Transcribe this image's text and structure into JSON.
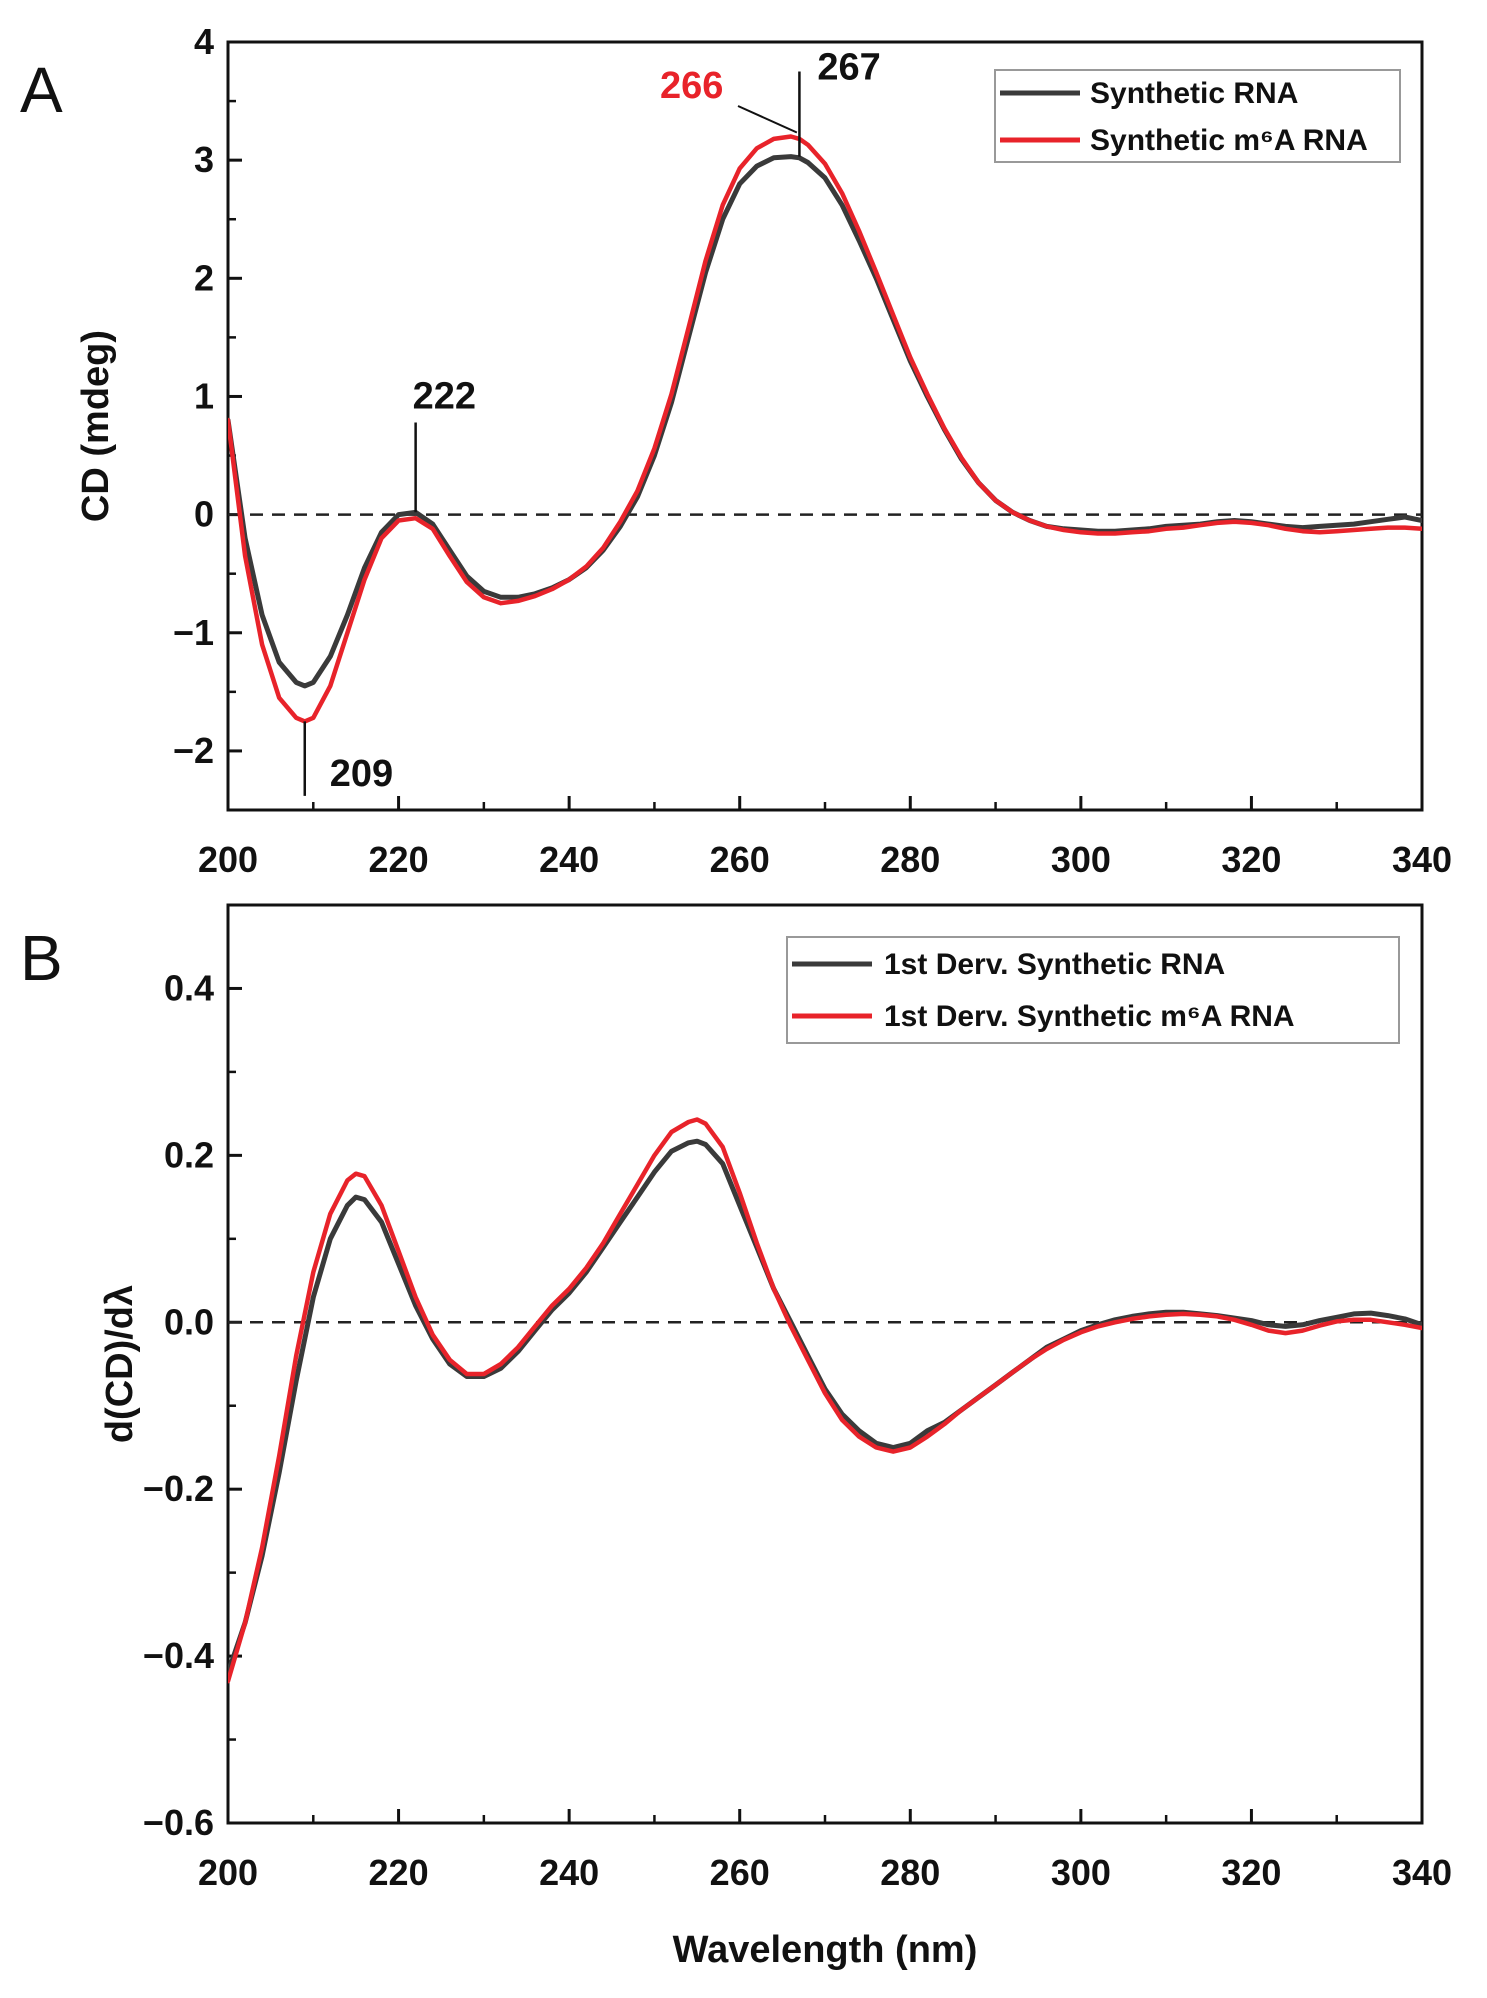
{
  "chart_data": [
    {
      "panel": "A",
      "type": "line",
      "title": "",
      "xlabel": "",
      "ylabel": "CD  (mdeg)",
      "xlim": [
        200,
        340
      ],
      "ylim": [
        -2.5,
        4
      ],
      "xticks": [
        "200",
        "220",
        "240",
        "260",
        "280",
        "300",
        "320",
        "340"
      ],
      "yticks": [
        "−2",
        "−1",
        "0",
        "1",
        "2",
        "3",
        "4"
      ],
      "ytick_values": [
        -2,
        -1,
        0,
        1,
        2,
        3,
        4
      ],
      "xtick_values": [
        200,
        220,
        240,
        260,
        280,
        300,
        320,
        340
      ],
      "zero_line": true,
      "legend_position": "top-right",
      "series": [
        {
          "name": "Synthetic RNA",
          "color": "#3a3a3a",
          "x": [
            200,
            202,
            204,
            206,
            208,
            209,
            210,
            212,
            214,
            216,
            218,
            220,
            222,
            224,
            226,
            228,
            230,
            232,
            234,
            236,
            238,
            240,
            242,
            244,
            246,
            248,
            250,
            252,
            254,
            256,
            258,
            260,
            262,
            264,
            266,
            267,
            268,
            270,
            272,
            274,
            276,
            278,
            280,
            282,
            284,
            286,
            288,
            290,
            292,
            294,
            296,
            298,
            300,
            302,
            304,
            306,
            308,
            310,
            312,
            314,
            316,
            318,
            320,
            322,
            324,
            326,
            328,
            330,
            332,
            334,
            336,
            338,
            340
          ],
          "y": [
            0.8,
            -0.2,
            -0.85,
            -1.25,
            -1.42,
            -1.45,
            -1.42,
            -1.2,
            -0.85,
            -0.45,
            -0.15,
            0.0,
            0.02,
            -0.08,
            -0.3,
            -0.52,
            -0.65,
            -0.7,
            -0.7,
            -0.67,
            -0.62,
            -0.55,
            -0.45,
            -0.3,
            -0.1,
            0.15,
            0.5,
            0.95,
            1.5,
            2.05,
            2.5,
            2.8,
            2.95,
            3.02,
            3.03,
            3.02,
            2.98,
            2.85,
            2.62,
            2.32,
            2.0,
            1.65,
            1.3,
            1.0,
            0.72,
            0.47,
            0.27,
            0.12,
            0.02,
            -0.05,
            -0.1,
            -0.12,
            -0.13,
            -0.14,
            -0.14,
            -0.13,
            -0.12,
            -0.1,
            -0.09,
            -0.08,
            -0.06,
            -0.05,
            -0.06,
            -0.08,
            -0.1,
            -0.11,
            -0.1,
            -0.09,
            -0.08,
            -0.06,
            -0.04,
            -0.02,
            -0.05
          ]
        },
        {
          "name": "Synthetic m⁶A RNA",
          "color": "#e8232a",
          "x": [
            200,
            202,
            204,
            206,
            208,
            209,
            210,
            212,
            214,
            216,
            218,
            220,
            222,
            224,
            226,
            228,
            230,
            232,
            234,
            236,
            238,
            240,
            242,
            244,
            246,
            248,
            250,
            252,
            254,
            256,
            258,
            260,
            262,
            264,
            266,
            267,
            268,
            270,
            272,
            274,
            276,
            278,
            280,
            282,
            284,
            286,
            288,
            290,
            292,
            294,
            296,
            298,
            300,
            302,
            304,
            306,
            308,
            310,
            312,
            314,
            316,
            318,
            320,
            322,
            324,
            326,
            328,
            330,
            332,
            334,
            336,
            338,
            340
          ],
          "y": [
            0.8,
            -0.35,
            -1.1,
            -1.55,
            -1.72,
            -1.75,
            -1.72,
            -1.45,
            -1.0,
            -0.55,
            -0.2,
            -0.05,
            -0.03,
            -0.12,
            -0.35,
            -0.57,
            -0.7,
            -0.75,
            -0.73,
            -0.69,
            -0.63,
            -0.55,
            -0.44,
            -0.28,
            -0.06,
            0.2,
            0.56,
            1.02,
            1.58,
            2.15,
            2.62,
            2.93,
            3.1,
            3.18,
            3.2,
            3.18,
            3.13,
            2.97,
            2.72,
            2.4,
            2.05,
            1.69,
            1.33,
            1.02,
            0.73,
            0.48,
            0.27,
            0.12,
            0.02,
            -0.05,
            -0.1,
            -0.13,
            -0.15,
            -0.16,
            -0.16,
            -0.15,
            -0.14,
            -0.12,
            -0.11,
            -0.09,
            -0.07,
            -0.06,
            -0.07,
            -0.09,
            -0.12,
            -0.14,
            -0.15,
            -0.14,
            -0.13,
            -0.12,
            -0.11,
            -0.11,
            -0.12
          ]
        }
      ],
      "annotations": [
        {
          "text": "209",
          "x": 209,
          "color": "#111111",
          "ref_y": -1.75,
          "line_to_y": -2.38
        },
        {
          "text": "222",
          "x": 222,
          "color": "#111111",
          "ref_y": 0.02,
          "line_to_y": 0.78
        },
        {
          "text": "267",
          "x": 267,
          "color": "#111111",
          "ref_y": 3.03,
          "line_to_y": 3.75
        },
        {
          "text": "266",
          "x": 266,
          "color": "#e8232a",
          "ref_y": 3.2
        }
      ]
    },
    {
      "panel": "B",
      "type": "line",
      "title": "",
      "xlabel": "Wavelength  (nm)",
      "ylabel": "d(CD)/dλ",
      "xlim": [
        200,
        340
      ],
      "ylim": [
        -0.6,
        0.5
      ],
      "xticks": [
        "200",
        "220",
        "240",
        "260",
        "280",
        "300",
        "320",
        "340"
      ],
      "yticks": [
        "−0.6",
        "−0.4",
        "−0.2",
        "0.0",
        "0.2",
        "0.4"
      ],
      "ytick_values": [
        -0.6,
        -0.4,
        -0.2,
        0.0,
        0.2,
        0.4
      ],
      "xtick_values": [
        200,
        220,
        240,
        260,
        280,
        300,
        320,
        340
      ],
      "zero_line": true,
      "legend_position": "top-right",
      "series": [
        {
          "name": "1st Derv. Synthetic RNA",
          "color": "#3a3a3a",
          "x": [
            200,
            202,
            204,
            206,
            208,
            210,
            212,
            214,
            215,
            216,
            218,
            220,
            222,
            224,
            226,
            228,
            230,
            232,
            234,
            236,
            238,
            240,
            242,
            244,
            246,
            248,
            250,
            252,
            254,
            255,
            256,
            258,
            260,
            262,
            264,
            266,
            268,
            270,
            272,
            274,
            276,
            278,
            280,
            282,
            284,
            286,
            288,
            290,
            292,
            294,
            296,
            298,
            300,
            302,
            304,
            306,
            308,
            310,
            312,
            314,
            316,
            318,
            320,
            322,
            324,
            326,
            328,
            330,
            332,
            334,
            336,
            338,
            340
          ],
          "y": [
            -0.42,
            -0.36,
            -0.28,
            -0.18,
            -0.07,
            0.03,
            0.1,
            0.14,
            0.15,
            0.147,
            0.12,
            0.07,
            0.02,
            -0.02,
            -0.05,
            -0.065,
            -0.065,
            -0.055,
            -0.035,
            -0.01,
            0.015,
            0.035,
            0.06,
            0.09,
            0.12,
            0.15,
            0.18,
            0.205,
            0.215,
            0.217,
            0.213,
            0.19,
            0.14,
            0.09,
            0.04,
            0.0,
            -0.04,
            -0.08,
            -0.11,
            -0.13,
            -0.145,
            -0.15,
            -0.145,
            -0.13,
            -0.12,
            -0.105,
            -0.09,
            -0.075,
            -0.06,
            -0.045,
            -0.03,
            -0.02,
            -0.01,
            -0.003,
            0.003,
            0.007,
            0.01,
            0.012,
            0.012,
            0.01,
            0.008,
            0.005,
            0.002,
            -0.003,
            -0.005,
            -0.003,
            0.002,
            0.006,
            0.01,
            0.011,
            0.008,
            0.004,
            -0.003
          ]
        },
        {
          "name": "1st Derv. Synthetic m⁶A RNA",
          "color": "#e8232a",
          "x": [
            200,
            202,
            204,
            206,
            208,
            210,
            212,
            214,
            215,
            216,
            218,
            220,
            222,
            224,
            226,
            228,
            230,
            232,
            234,
            236,
            238,
            240,
            242,
            244,
            246,
            248,
            250,
            252,
            254,
            255,
            256,
            258,
            260,
            262,
            264,
            266,
            268,
            270,
            272,
            274,
            276,
            278,
            280,
            282,
            284,
            286,
            288,
            290,
            292,
            294,
            296,
            298,
            300,
            302,
            304,
            306,
            308,
            310,
            312,
            314,
            316,
            318,
            320,
            322,
            324,
            326,
            328,
            330,
            332,
            334,
            336,
            338,
            340
          ],
          "y": [
            -0.43,
            -0.36,
            -0.27,
            -0.16,
            -0.04,
            0.06,
            0.13,
            0.17,
            0.178,
            0.175,
            0.14,
            0.085,
            0.03,
            -0.015,
            -0.045,
            -0.062,
            -0.062,
            -0.05,
            -0.03,
            -0.005,
            0.02,
            0.04,
            0.065,
            0.095,
            0.13,
            0.165,
            0.2,
            0.228,
            0.24,
            0.243,
            0.238,
            0.21,
            0.155,
            0.095,
            0.04,
            -0.005,
            -0.045,
            -0.085,
            -0.117,
            -0.137,
            -0.15,
            -0.155,
            -0.15,
            -0.137,
            -0.122,
            -0.105,
            -0.09,
            -0.075,
            -0.06,
            -0.045,
            -0.032,
            -0.021,
            -0.012,
            -0.005,
            0.0,
            0.004,
            0.007,
            0.009,
            0.01,
            0.009,
            0.007,
            0.003,
            -0.003,
            -0.01,
            -0.013,
            -0.01,
            -0.004,
            0.001,
            0.003,
            0.003,
            0.0,
            -0.003,
            -0.007
          ]
        }
      ],
      "annotations": []
    }
  ]
}
